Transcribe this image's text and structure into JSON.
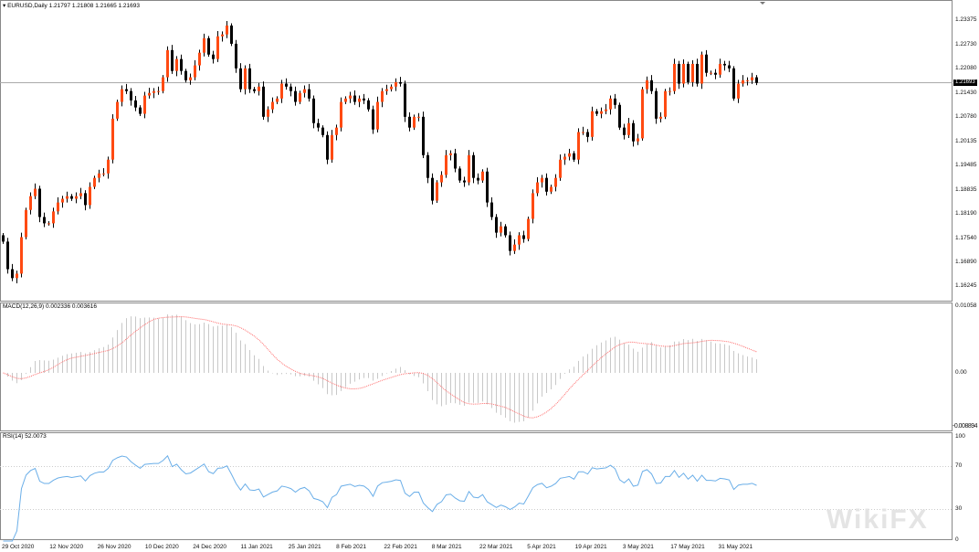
{
  "header": {
    "symbol_line": "EURUSD,Daily  1.21797 1.21808 1.21665 1.21693",
    "menu_icon": "triangle-down-icon"
  },
  "price_axis": {
    "labels": [
      "1.23375",
      "1.22730",
      "1.22080",
      "1.21430",
      "1.20780",
      "1.20135",
      "1.19485",
      "1.18835",
      "1.18190",
      "1.17540",
      "1.16890",
      "1.16245"
    ],
    "current_price": "1.21693"
  },
  "macd": {
    "title": "MACD(12,26,9) 0.002336 0.003616",
    "axis": [
      "0.01058",
      "0.00",
      "-0.008894"
    ]
  },
  "rsi": {
    "title": "RSI(14) 52.0073",
    "axis": [
      "100",
      "70",
      "30",
      "0"
    ]
  },
  "dates": [
    "29 Oct 2020",
    "12 Nov 2020",
    "26 Nov 2020",
    "10 Dec 2020",
    "24 Dec 2020",
    "11 Jan 2021",
    "25 Jan 2021",
    "8 Feb 2021",
    "22 Feb 2021",
    "8 Mar 2021",
    "22 Mar 2021",
    "5 Apr 2021",
    "19 Apr 2021",
    "3 May 2021",
    "17 May 2021",
    "31 May 2021"
  ],
  "watermark": "WikiFX",
  "colors": {
    "bull": "#ff4a12",
    "bear": "#000000",
    "signal": "#ff6b6b",
    "rsi": "#6aaee8",
    "hist": "#c8c8c8"
  },
  "chart_data": {
    "type": "candlestick",
    "symbol": "EURUSD",
    "timeframe": "Daily",
    "ylim": [
      1.159,
      1.24
    ],
    "first_open": 1.176,
    "closes": [
      1.1743,
      1.1669,
      1.1645,
      1.1657,
      1.1755,
      1.1828,
      1.1865,
      1.1885,
      1.1809,
      1.1792,
      1.1792,
      1.1824,
      1.1848,
      1.1858,
      1.1865,
      1.1858,
      1.1865,
      1.1873,
      1.1841,
      1.189,
      1.1914,
      1.1926,
      1.1926,
      1.1963,
      1.2073,
      1.2118,
      1.2152,
      1.2147,
      1.2122,
      1.2103,
      1.2086,
      1.2135,
      1.2142,
      1.2147,
      1.2147,
      1.2184,
      1.2257,
      1.2201,
      1.2233,
      1.2201,
      1.2176,
      1.2184,
      1.2216,
      1.225,
      1.2289,
      1.2245,
      1.2233,
      1.2294,
      1.2299,
      1.2323,
      1.2274,
      1.2208,
      1.2152,
      1.2208,
      1.2152,
      1.2147,
      1.2159,
      1.2078,
      1.2098,
      1.2118,
      1.2127,
      1.2167,
      1.2159,
      1.2147,
      1.2118,
      1.2142,
      1.2152,
      1.2127,
      1.2061,
      1.2049,
      1.2029,
      1.1963,
      1.2029,
      1.2049,
      1.2118,
      1.2127,
      1.2135,
      1.2118,
      1.2127,
      1.2122,
      1.2098,
      1.2044,
      1.2118,
      1.2147,
      1.2152,
      1.2159,
      1.2171,
      1.2167,
      1.2078,
      1.2049,
      1.2078,
      1.2078,
      1.1975,
      1.1914,
      1.1853,
      1.1902,
      1.1922,
      1.1975,
      1.198,
      1.1939,
      1.1907,
      1.1902,
      1.1975,
      1.1914,
      1.1907,
      1.1931,
      1.1848,
      1.1809,
      1.1767,
      1.1784,
      1.176,
      1.1718,
      1.1735,
      1.176,
      1.175,
      1.1804,
      1.1873,
      1.1902,
      1.1914,
      1.1877,
      1.189,
      1.1914,
      1.1963,
      1.1971,
      1.198,
      1.1963,
      1.2037,
      1.2037,
      1.2024,
      1.2093,
      1.2086,
      1.2093,
      1.2098,
      1.2127,
      1.211,
      1.2049,
      1.2029,
      1.2061,
      1.2012,
      1.202,
      1.2152,
      1.2176,
      1.2147,
      1.2073,
      1.2078,
      1.2147,
      1.2147,
      1.222,
      1.2167,
      1.222,
      1.2171,
      1.222,
      1.2167,
      1.2245,
      1.2196,
      1.2196,
      1.2191,
      1.222,
      1.2216,
      1.2208,
      1.2127,
      1.2167,
      1.2176,
      1.2176,
      1.2184,
      1.2169
    ]
  }
}
